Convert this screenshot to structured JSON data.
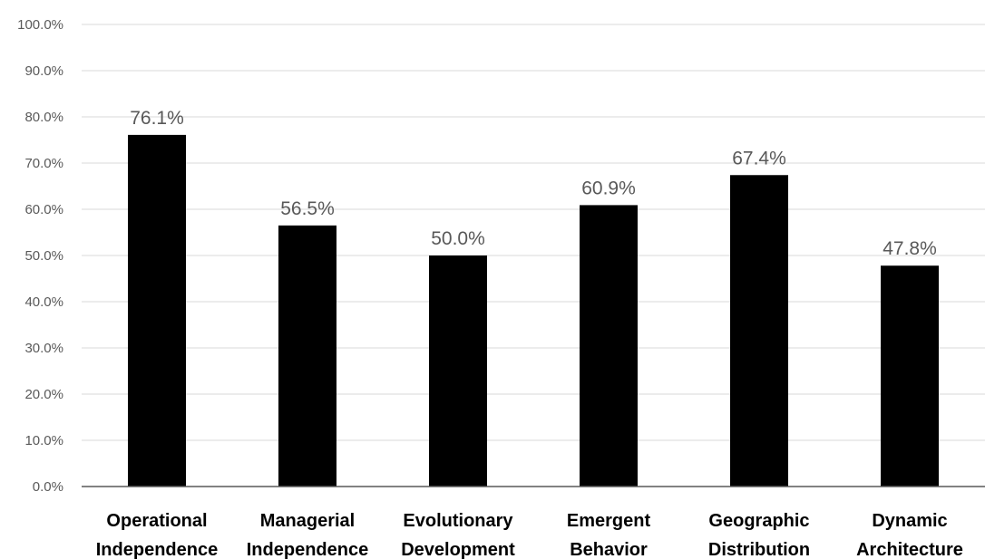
{
  "chart_data": {
    "type": "bar",
    "categories": [
      [
        "Operational",
        "Independence"
      ],
      [
        "Managerial",
        "Independence"
      ],
      [
        "Evolutionary",
        "Development"
      ],
      [
        "Emergent",
        "Behavior"
      ],
      [
        "Geographic",
        "Distribution"
      ],
      [
        "Dynamic",
        "Architecture"
      ]
    ],
    "values": [
      76.1,
      56.5,
      50.0,
      60.9,
      67.4,
      47.8
    ],
    "data_labels": [
      "76.1%",
      "56.5%",
      "50.0%",
      "60.9%",
      "67.4%",
      "47.8%"
    ],
    "yticks": [
      0,
      10,
      20,
      30,
      40,
      50,
      60,
      70,
      80,
      90,
      100
    ],
    "ytick_labels": [
      "0.0%",
      "10.0%",
      "20.0%",
      "30.0%",
      "40.0%",
      "50.0%",
      "60.0%",
      "70.0%",
      "80.0%",
      "90.0%",
      "100.0%"
    ],
    "ylim": [
      0,
      100
    ],
    "title": "",
    "xlabel": "",
    "ylabel": "",
    "grid": true,
    "legend": "none",
    "colors": {
      "bar": "#000000",
      "gridline": "#d9d9d9",
      "axis_text": "#595959",
      "category_text": "#000000"
    }
  }
}
